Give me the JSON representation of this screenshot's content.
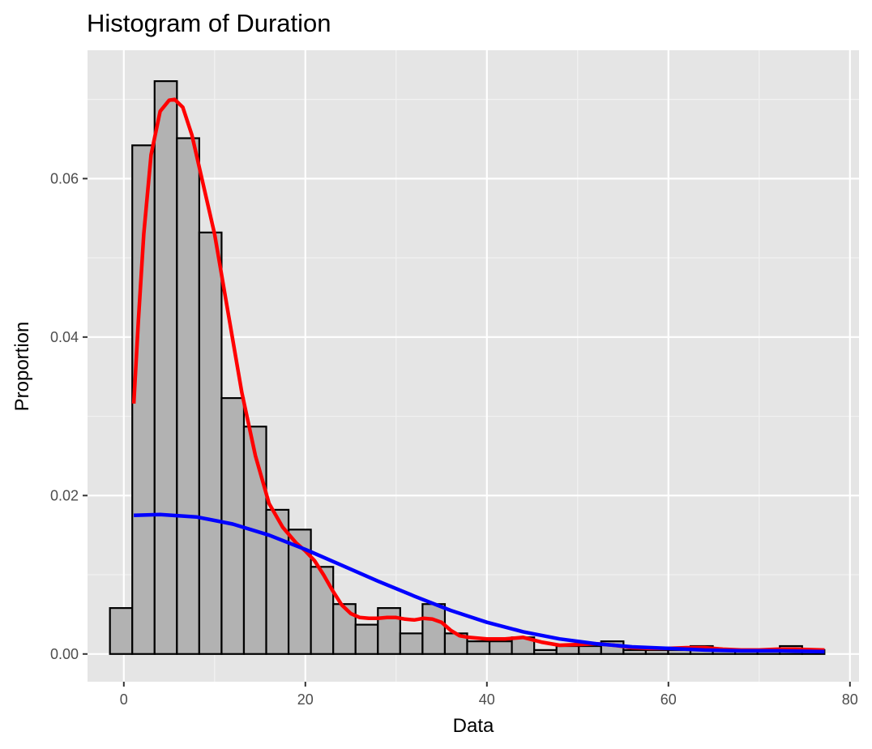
{
  "chart_data": {
    "type": "bar",
    "title": "Histogram of Duration",
    "xlabel": "Data",
    "ylabel": "Proportion",
    "xlim": [
      -4,
      81
    ],
    "ylim": [
      -0.0035,
      0.0762
    ],
    "x_ticks": [
      0,
      20,
      40,
      60,
      80
    ],
    "x_tick_labels": [
      "0",
      "20",
      "40",
      "60",
      "80"
    ],
    "y_ticks": [
      0,
      0.02,
      0.04,
      0.06
    ],
    "y_tick_labels": [
      "0.00",
      "0.02",
      "0.04",
      "0.06"
    ],
    "grid": true,
    "histogram": {
      "bin_width": 2.46,
      "bin_starts": [
        -1.53,
        0.93,
        3.39,
        5.85,
        8.31,
        10.77,
        13.23,
        15.69,
        18.15,
        20.61,
        23.07,
        25.53,
        27.99,
        30.45,
        32.91,
        35.37,
        37.83,
        40.29,
        42.75,
        45.21,
        47.67,
        50.13,
        52.59,
        55.05,
        57.51,
        59.97,
        62.43,
        64.89,
        67.35,
        69.81,
        72.27,
        74.73
      ],
      "values": [
        0.0058,
        0.0642,
        0.0723,
        0.0651,
        0.0532,
        0.0323,
        0.0287,
        0.0182,
        0.0157,
        0.011,
        0.0063,
        0.0037,
        0.0058,
        0.0026,
        0.0063,
        0.0026,
        0.0016,
        0.0016,
        0.0021,
        0.0005,
        0.001,
        0.001,
        0.0016,
        0.0005,
        0.0005,
        0.0005,
        0.001,
        0.0005,
        0.0005,
        0.0005,
        0.001,
        0.0005
      ],
      "fill": "#b2b2b2",
      "stroke": "#000000"
    },
    "series": [
      {
        "color": "#ff0000",
        "x": [
          1.1,
          1.6,
          2.2,
          3,
          4,
          5,
          5.6,
          6.5,
          7.5,
          8.5,
          10,
          11.5,
          13,
          14.5,
          16,
          17.5,
          19,
          20,
          21,
          22,
          23,
          24,
          25,
          26,
          27,
          28,
          29,
          30,
          31,
          32,
          33,
          34,
          35,
          36,
          37,
          38,
          40,
          42,
          44,
          46,
          48,
          50,
          52,
          54,
          56,
          58,
          60,
          62,
          64,
          66,
          68,
          70,
          72,
          74,
          77.2
        ],
        "y": [
          0.0316,
          0.042,
          0.053,
          0.063,
          0.0685,
          0.0699,
          0.07,
          0.069,
          0.0655,
          0.0605,
          0.053,
          0.043,
          0.033,
          0.025,
          0.019,
          0.016,
          0.014,
          0.013,
          0.0118,
          0.01,
          0.008,
          0.0062,
          0.0051,
          0.0046,
          0.0045,
          0.0045,
          0.0046,
          0.0046,
          0.0044,
          0.0043,
          0.0045,
          0.0044,
          0.004,
          0.003,
          0.0023,
          0.0021,
          0.0019,
          0.0019,
          0.0021,
          0.0015,
          0.0011,
          0.0012,
          0.0013,
          0.0011,
          0.0008,
          0.0007,
          0.0007,
          0.0008,
          0.0008,
          0.0006,
          0.0005,
          0.0005,
          0.0006,
          0.0006,
          0.0005
        ]
      },
      {
        "color": "#0000ff",
        "x": [
          1.1,
          4,
          8,
          12,
          16,
          20,
          24,
          28,
          32,
          36,
          40,
          44,
          48,
          52,
          56,
          60,
          64,
          68,
          72,
          77.2
        ],
        "y": [
          0.0175,
          0.0176,
          0.0173,
          0.0164,
          0.015,
          0.0132,
          0.0112,
          0.0092,
          0.0073,
          0.0055,
          0.004,
          0.0028,
          0.0019,
          0.0013,
          0.0009,
          0.0007,
          0.0005,
          0.0004,
          0.0004,
          0.0003
        ]
      }
    ]
  }
}
